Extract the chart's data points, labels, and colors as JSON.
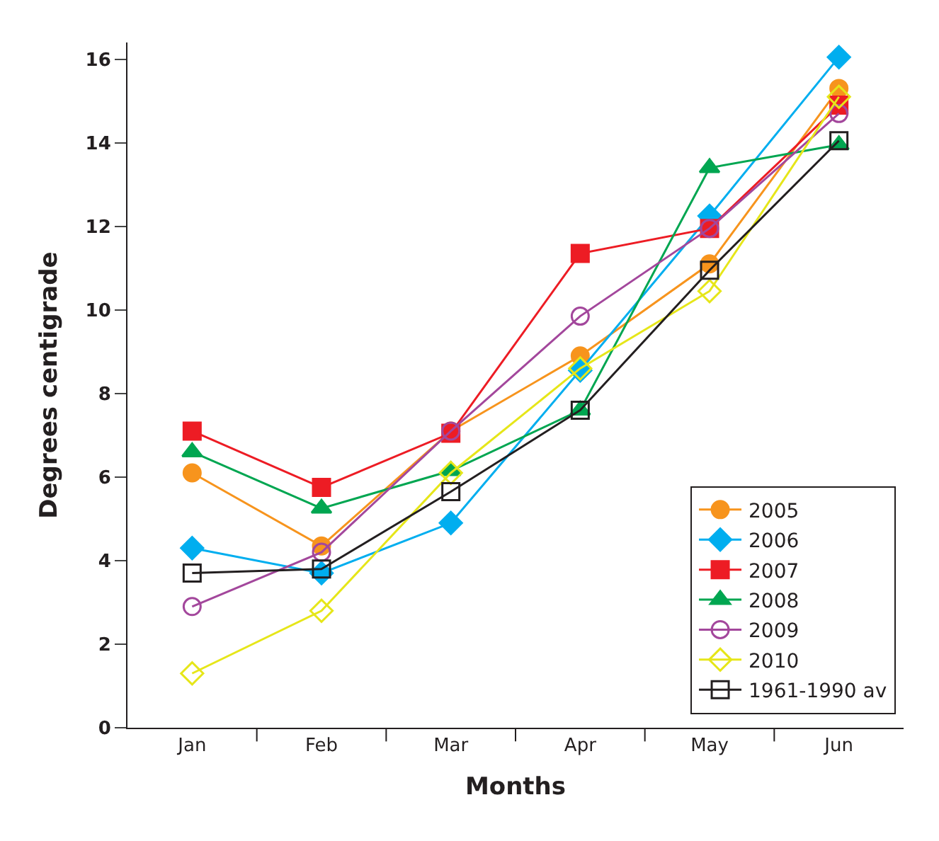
{
  "chart_data": {
    "type": "line",
    "xlabel": "Months",
    "ylabel": "Degrees centigrade",
    "categories": [
      "Jan",
      "Feb",
      "Mar",
      "Apr",
      "May",
      "Jun"
    ],
    "ylim": [
      0,
      16.4
    ],
    "yticks": [
      0,
      2,
      4,
      6,
      8,
      10,
      12,
      14,
      16
    ],
    "legend": "bottom right",
    "series": [
      {
        "name": "2005",
        "color": "#f7941d",
        "marker": "circle",
        "values": [
          6.1,
          4.35,
          7.1,
          8.9,
          11.1,
          15.3
        ]
      },
      {
        "name": "2006",
        "color": "#00aeef",
        "marker": "diamond",
        "values": [
          4.3,
          3.7,
          4.9,
          8.55,
          12.25,
          16.05
        ]
      },
      {
        "name": "2007",
        "color": "#ed1c24",
        "marker": "square",
        "values": [
          7.1,
          5.75,
          7.05,
          11.35,
          11.95,
          14.9
        ]
      },
      {
        "name": "2008",
        "color": "#00a651",
        "marker": "triangle",
        "values": [
          6.6,
          5.25,
          6.15,
          7.6,
          13.4,
          13.95
        ]
      },
      {
        "name": "2009",
        "color": "#a3479c",
        "marker": "circle-open",
        "values": [
          2.9,
          4.2,
          7.1,
          9.85,
          11.95,
          14.7
        ]
      },
      {
        "name": "2010",
        "color": "#e6e619",
        "marker": "diamond-open",
        "values": [
          1.3,
          2.8,
          6.1,
          8.6,
          10.45,
          15.1
        ]
      },
      {
        "name": "1961-1990 av",
        "color": "#231f20",
        "marker": "square-open",
        "values": [
          3.7,
          3.8,
          5.65,
          7.6,
          10.95,
          14.05
        ]
      }
    ]
  }
}
